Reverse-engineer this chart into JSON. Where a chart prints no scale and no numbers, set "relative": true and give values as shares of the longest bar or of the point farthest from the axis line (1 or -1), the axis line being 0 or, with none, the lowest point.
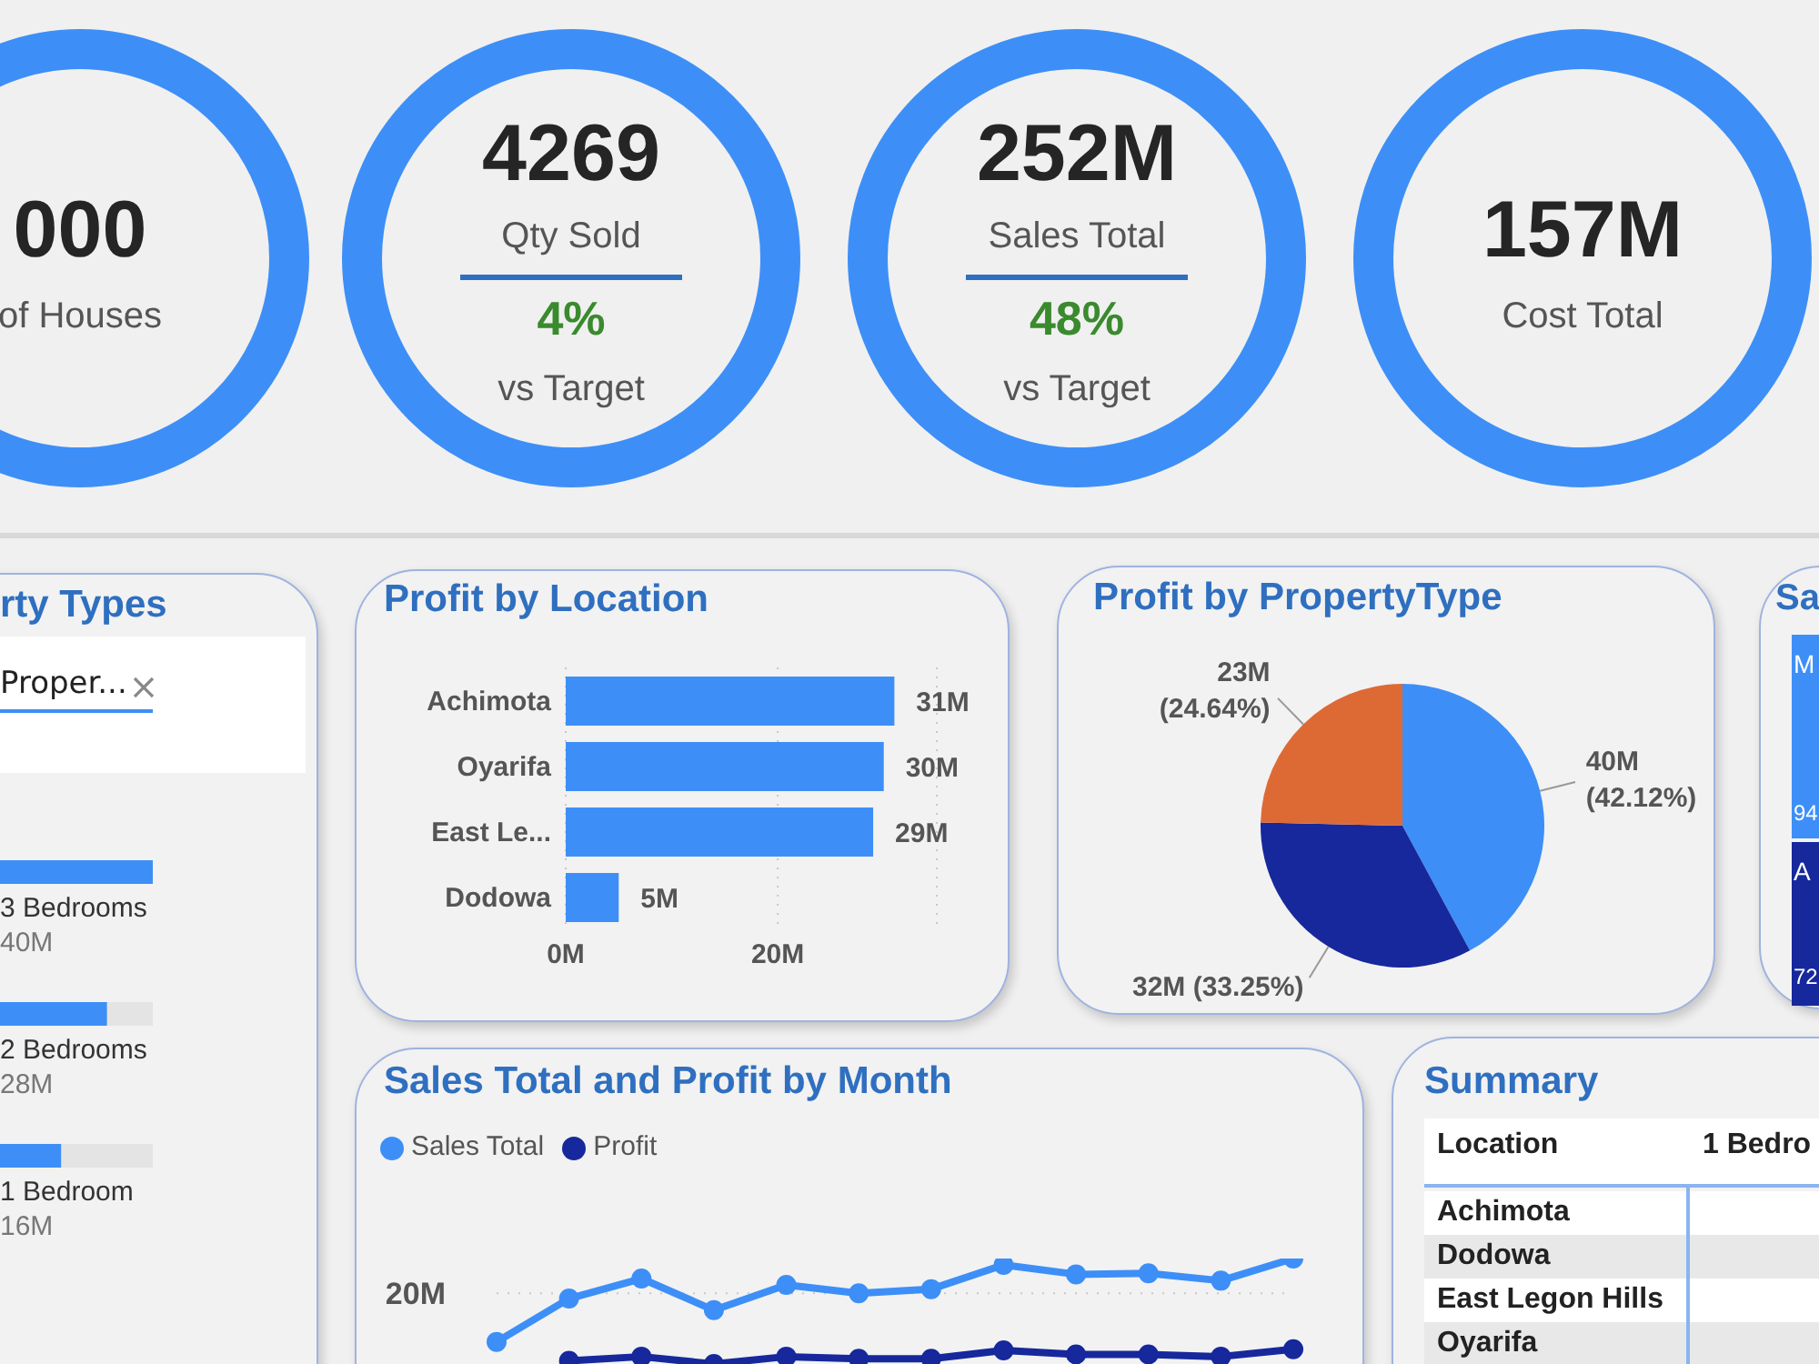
{
  "chart_data": [
    {
      "type": "other",
      "annotations": [
        "000",
        "of Houses"
      ]
    },
    {
      "type": "other",
      "annotations": [
        "4269",
        "Qty Sold",
        "4%",
        "vs Target"
      ]
    },
    {
      "type": "other",
      "annotations": [
        "252M",
        "Sales Total",
        "48%",
        "vs Target"
      ]
    },
    {
      "type": "other",
      "annotations": [
        "157M",
        "Cost Total"
      ]
    },
    {
      "type": "bar",
      "title": "rty Types",
      "orientation": "horizontal",
      "categories": [
        "3 Bedrooms",
        "2 Bedrooms",
        "1 Bedroom"
      ],
      "values": [
        40,
        28,
        16
      ],
      "color": "#3d8ff7",
      "value_labels": [
        "40M",
        "28M",
        "16M"
      ],
      "annotations": [
        "Proper..."
      ]
    },
    {
      "type": "bar",
      "title": "Profit by Location",
      "orientation": "horizontal",
      "categories": [
        "Achimota",
        "Oyarifa",
        "East Le...",
        "Dodowa"
      ],
      "values": [
        31,
        30,
        29,
        5
      ],
      "color": "#3d8ff7",
      "value_labels": [
        "31M",
        "30M",
        "29M",
        "5M"
      ],
      "xlim": [
        0,
        35
      ],
      "xticks": [
        {
          "value": 0,
          "label": "0M"
        },
        {
          "value": 20,
          "label": "20M"
        }
      ],
      "grid": "x"
    },
    {
      "type": "pie",
      "title": "Profit by PropertyType",
      "categories": [
        null,
        null,
        null
      ],
      "values": [
        42.12,
        33.25,
        24.64
      ],
      "colors": [
        "#3d8ff7",
        "#16289c",
        "#dd6a35"
      ],
      "value_labels": [
        "40M\n(42.12%)",
        "32M (33.25%)",
        "23M\n(24.64%)"
      ]
    },
    {
      "type": "other",
      "title": "Sa",
      "colors": [
        "#3d8ff7",
        "#16289c"
      ],
      "annotations": [
        "M",
        "94",
        "A",
        "72"
      ]
    },
    {
      "type": "line",
      "title": "Sales Total and Profit by Month",
      "categories": [
        null,
        null,
        null,
        null,
        null,
        null,
        null,
        null,
        null,
        null,
        null,
        null
      ],
      "relative": true,
      "legend": "top left",
      "marker": "circle",
      "series": [
        {
          "name": "Sales Total",
          "color": "#3d8ff7",
          "values": [
            0.21,
            0.62,
            0.81,
            0.51,
            0.75,
            0.67,
            0.71,
            0.94,
            0.85,
            0.86,
            0.79,
            1
          ]
        },
        {
          "name": "Profit",
          "color": "#16289c",
          "values": [
            null,
            0.03,
            0.07,
            0,
            0.07,
            0.05,
            0.05,
            0.13,
            0.09,
            0.09,
            0.07,
            0.14
          ]
        }
      ],
      "ref_lines": [
        {
          "axis": "y",
          "value": 0.67,
          "label": "20M",
          "line_style": "dotted"
        }
      ]
    },
    {
      "type": "other",
      "title": "Summary",
      "categories": [
        "Achimota",
        "Dodowa",
        "East Legon Hills",
        "Oyarifa"
      ],
      "annotations": [
        "Location",
        "1 Bedro"
      ]
    }
  ]
}
